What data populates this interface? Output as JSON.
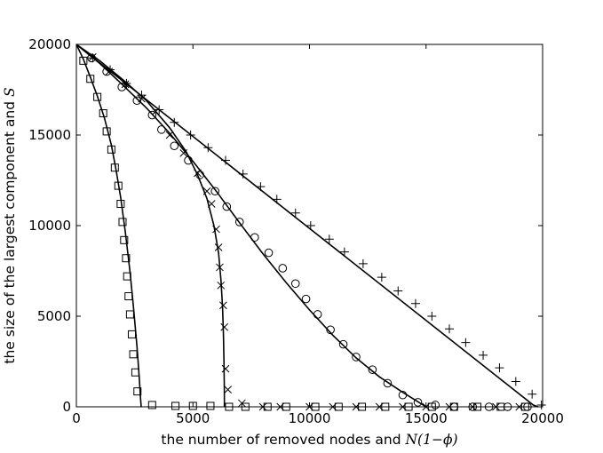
{
  "chart_data": {
    "type": "scatter",
    "xlabel": "the number of removed nodes and N(1−ϕ)",
    "xlabel_text": "the number of removed nodes and ",
    "xlabel_math": "N(1−ϕ)",
    "ylabel": "the size of the largest component and S",
    "ylabel_text": "the size of the largest component and ",
    "ylabel_math": "S",
    "xlim": [
      0,
      20000
    ],
    "ylim": [
      0,
      20000
    ],
    "xticks": [
      0,
      5000,
      10000,
      15000,
      20000
    ],
    "yticks": [
      0,
      5000,
      10000,
      15000,
      20000
    ],
    "xtick_labels": [
      "0",
      "5000",
      "10000",
      "15000",
      "20000"
    ],
    "ytick_labels": [
      "0",
      "5000",
      "10000",
      "15000",
      "20000"
    ],
    "grid": false,
    "legend": "none",
    "series": [
      {
        "marker": "square",
        "points": [
          [
            300,
            19100
          ],
          [
            600,
            18100
          ],
          [
            900,
            17100
          ],
          [
            1150,
            16200
          ],
          [
            1300,
            15200
          ],
          [
            1500,
            14200
          ],
          [
            1650,
            13200
          ],
          [
            1800,
            12200
          ],
          [
            1900,
            11200
          ],
          [
            1980,
            10200
          ],
          [
            2050,
            9200
          ],
          [
            2130,
            8200
          ],
          [
            2180,
            7200
          ],
          [
            2240,
            6100
          ],
          [
            2300,
            5100
          ],
          [
            2380,
            4000
          ],
          [
            2440,
            2900
          ],
          [
            2530,
            1900
          ],
          [
            2620,
            850
          ],
          [
            3250,
            100
          ],
          [
            4250,
            50
          ],
          [
            5000,
            50
          ],
          [
            5750,
            50
          ],
          [
            6550,
            0
          ],
          [
            7250,
            0
          ],
          [
            8200,
            0
          ],
          [
            9000,
            0
          ],
          [
            10250,
            0
          ],
          [
            11250,
            0
          ],
          [
            12250,
            0
          ],
          [
            13250,
            0
          ],
          [
            14250,
            0
          ],
          [
            15250,
            0
          ],
          [
            16200,
            0
          ],
          [
            17200,
            0
          ],
          [
            18200,
            0
          ],
          [
            19250,
            0
          ]
        ],
        "curve": [
          [
            0,
            20000
          ],
          [
            300,
            19180
          ],
          [
            600,
            18180
          ],
          [
            900,
            17150
          ],
          [
            1200,
            15950
          ],
          [
            1500,
            14450
          ],
          [
            1700,
            13100
          ],
          [
            1900,
            11550
          ],
          [
            2100,
            9650
          ],
          [
            2300,
            7450
          ],
          [
            2450,
            5500
          ],
          [
            2600,
            3300
          ],
          [
            2700,
            1550
          ],
          [
            2750,
            500
          ],
          [
            2780,
            0
          ]
        ]
      },
      {
        "marker": "x",
        "points": [
          [
            700,
            19300
          ],
          [
            1400,
            18500
          ],
          [
            2100,
            17800
          ],
          [
            2800,
            17000
          ],
          [
            3400,
            16300
          ],
          [
            4000,
            15000
          ],
          [
            4600,
            14000
          ],
          [
            5200,
            12900
          ],
          [
            5600,
            11900
          ],
          [
            5800,
            11200
          ],
          [
            6000,
            9800
          ],
          [
            6100,
            8800
          ],
          [
            6150,
            7700
          ],
          [
            6200,
            6700
          ],
          [
            6300,
            5600
          ],
          [
            6350,
            4400
          ],
          [
            6400,
            2100
          ],
          [
            6500,
            950
          ],
          [
            7100,
            200
          ],
          [
            8000,
            0
          ],
          [
            8750,
            0
          ],
          [
            10000,
            0
          ],
          [
            11000,
            0
          ],
          [
            12000,
            0
          ],
          [
            13000,
            0
          ],
          [
            14000,
            0
          ],
          [
            15000,
            0
          ],
          [
            16000,
            0
          ],
          [
            17000,
            0
          ],
          [
            18000,
            0
          ],
          [
            19000,
            0
          ]
        ],
        "curve": [
          [
            0,
            20000
          ],
          [
            1000,
            19100
          ],
          [
            2000,
            18050
          ],
          [
            3000,
            16900
          ],
          [
            4000,
            15400
          ],
          [
            4700,
            14100
          ],
          [
            5200,
            12800
          ],
          [
            5600,
            11500
          ],
          [
            5900,
            10000
          ],
          [
            6100,
            8500
          ],
          [
            6200,
            7000
          ],
          [
            6270,
            5500
          ],
          [
            6310,
            4000
          ],
          [
            6330,
            2500
          ],
          [
            6345,
            1000
          ],
          [
            6350,
            0
          ]
        ]
      },
      {
        "marker": "circle",
        "points": [
          [
            650,
            19250
          ],
          [
            1300,
            18500
          ],
          [
            1950,
            17650
          ],
          [
            2600,
            16900
          ],
          [
            3250,
            16100
          ],
          [
            3650,
            15300
          ],
          [
            4200,
            14400
          ],
          [
            4800,
            13600
          ],
          [
            5300,
            12800
          ],
          [
            5950,
            11900
          ],
          [
            6450,
            11050
          ],
          [
            7000,
            10200
          ],
          [
            7650,
            9350
          ],
          [
            8250,
            8500
          ],
          [
            8850,
            7650
          ],
          [
            9400,
            6800
          ],
          [
            9850,
            5950
          ],
          [
            10350,
            5100
          ],
          [
            10900,
            4250
          ],
          [
            11450,
            3450
          ],
          [
            12000,
            2750
          ],
          [
            12700,
            2050
          ],
          [
            13350,
            1300
          ],
          [
            14000,
            650
          ],
          [
            14650,
            250
          ],
          [
            15400,
            100
          ],
          [
            16200,
            0
          ],
          [
            17000,
            0
          ],
          [
            17700,
            0
          ],
          [
            18500,
            0
          ],
          [
            19350,
            0
          ]
        ],
        "curve": [
          [
            0,
            20000
          ],
          [
            1000,
            18950
          ],
          [
            2000,
            17750
          ],
          [
            3000,
            16500
          ],
          [
            4000,
            15100
          ],
          [
            5000,
            13550
          ],
          [
            6000,
            11900
          ],
          [
            7000,
            10150
          ],
          [
            8000,
            8450
          ],
          [
            9000,
            6850
          ],
          [
            10000,
            5350
          ],
          [
            11000,
            3950
          ],
          [
            12000,
            2700
          ],
          [
            13000,
            1650
          ],
          [
            14000,
            800
          ],
          [
            14500,
            400
          ],
          [
            15000,
            0
          ]
        ]
      },
      {
        "marker": "plus",
        "points": [
          [
            700,
            19250
          ],
          [
            1450,
            18600
          ],
          [
            2150,
            17850
          ],
          [
            2800,
            17200
          ],
          [
            3550,
            16400
          ],
          [
            4200,
            15700
          ],
          [
            4900,
            15000
          ],
          [
            5650,
            14300
          ],
          [
            6400,
            13600
          ],
          [
            7150,
            12850
          ],
          [
            7900,
            12150
          ],
          [
            8600,
            11450
          ],
          [
            9400,
            10700
          ],
          [
            10050,
            10000
          ],
          [
            10850,
            9250
          ],
          [
            11500,
            8550
          ],
          [
            12300,
            7900
          ],
          [
            13100,
            7150
          ],
          [
            13800,
            6400
          ],
          [
            14550,
            5700
          ],
          [
            15250,
            5000
          ],
          [
            16000,
            4300
          ],
          [
            16700,
            3550
          ],
          [
            17450,
            2850
          ],
          [
            18150,
            2150
          ],
          [
            18850,
            1400
          ],
          [
            19550,
            700
          ],
          [
            19950,
            100
          ]
        ],
        "curve": [
          [
            0,
            20000
          ],
          [
            19600,
            100
          ],
          [
            19800,
            0
          ]
        ]
      }
    ]
  }
}
